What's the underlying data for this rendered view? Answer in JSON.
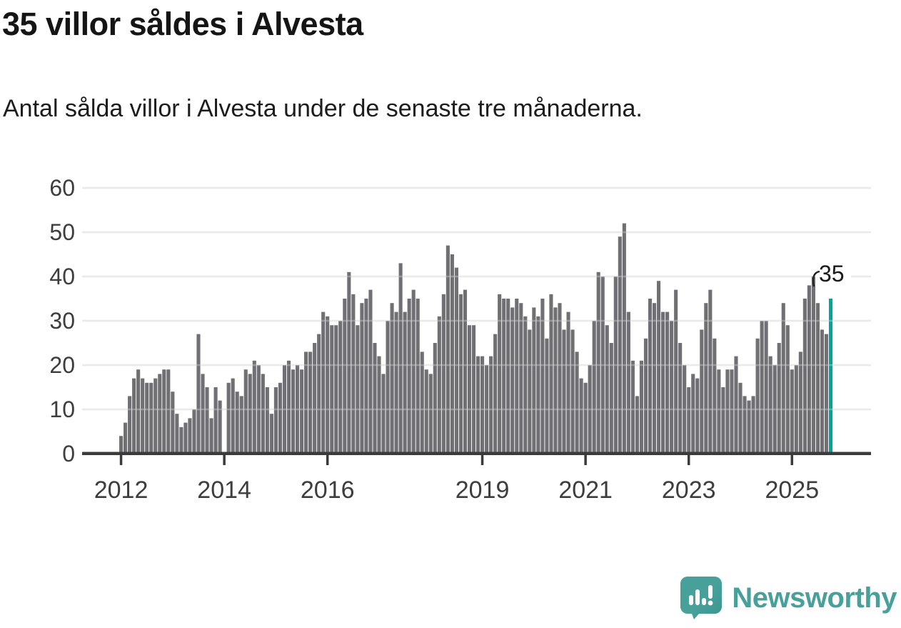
{
  "header": {
    "title": "35 villor såldes i Alvesta",
    "subtitle": "Antal sålda villor i Alvesta under de senaste tre månaderna."
  },
  "chart_data": {
    "type": "bar",
    "title": "35 villor såldes i Alvesta",
    "subtitle": "Antal sålda villor i Alvesta under de senaste tre månaderna.",
    "x_start": "2012-01",
    "x_end": "2025-10",
    "x_unit": "month",
    "values": [
      4,
      7,
      13,
      17,
      19,
      17,
      16,
      16,
      17,
      18,
      19,
      19,
      14,
      9,
      6,
      7,
      8,
      10,
      27,
      18,
      15,
      8,
      15,
      12,
      0,
      16,
      17,
      14,
      13,
      19,
      18,
      21,
      20,
      18,
      15,
      9,
      15,
      16,
      20,
      21,
      19,
      20,
      19,
      23,
      23,
      25,
      27,
      32,
      31,
      29,
      29,
      30,
      35,
      41,
      36,
      29,
      34,
      35,
      37,
      25,
      22,
      18,
      30,
      34,
      32,
      43,
      32,
      35,
      37,
      35,
      23,
      19,
      18,
      25,
      31,
      36,
      47,
      45,
      42,
      36,
      37,
      29,
      29,
      22,
      22,
      20,
      22,
      27,
      36,
      35,
      35,
      33,
      35,
      34,
      31,
      28,
      33,
      31,
      35,
      26,
      36,
      33,
      34,
      28,
      32,
      28,
      23,
      17,
      16,
      20,
      30,
      41,
      40,
      29,
      25,
      40,
      49,
      52,
      32,
      21,
      13,
      21,
      26,
      35,
      34,
      39,
      32,
      32,
      30,
      37,
      25,
      20,
      15,
      18,
      17,
      28,
      34,
      37,
      26,
      19,
      15,
      19,
      19,
      22,
      16,
      13,
      12,
      13,
      26,
      30,
      30,
      22,
      20,
      25,
      34,
      29,
      19,
      20,
      23,
      35,
      38,
      40,
      34,
      28,
      27,
      35
    ],
    "highlight_last": true,
    "last_value_label": "35",
    "ylim": [
      0,
      60
    ],
    "y_ticks": [
      0,
      10,
      20,
      30,
      40,
      50,
      60
    ],
    "x_ticks": [
      {
        "label": "2012",
        "month_index": 0
      },
      {
        "label": "2014",
        "month_index": 24
      },
      {
        "label": "2016",
        "month_index": 48
      },
      {
        "label": "2019",
        "month_index": 84
      },
      {
        "label": "2021",
        "month_index": 108
      },
      {
        "label": "2023",
        "month_index": 132
      },
      {
        "label": "2025",
        "month_index": 156
      }
    ],
    "grid": true,
    "legend": "none",
    "colors": {
      "bar": "#6f6f74",
      "highlight": "#00a69c",
      "gridline": "#e2e2e2",
      "axis": "#3b3b3b",
      "tick_label": "#3d3d3d",
      "annotation": "#1a1a1a"
    }
  },
  "footer": {
    "brand": "Newsworthy",
    "logo_color": "#47a09a",
    "logo_shade": "#3c948e",
    "logo_icon": "bar-chart-exclamation-speech-bubble"
  }
}
